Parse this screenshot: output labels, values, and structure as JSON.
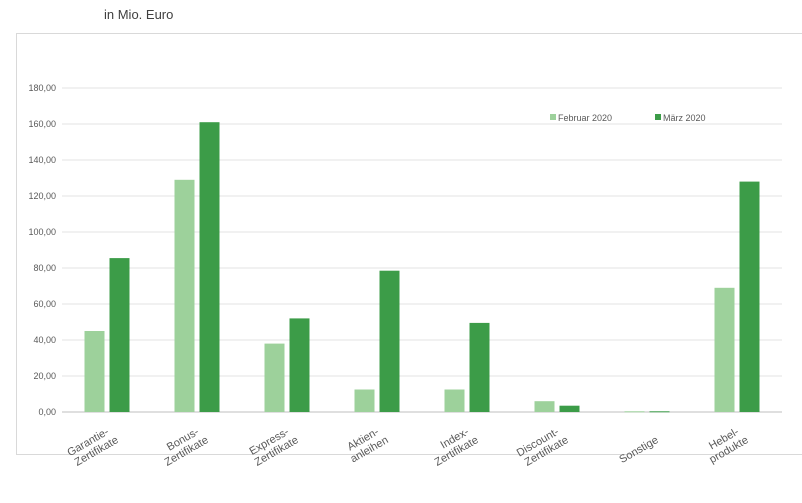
{
  "subtitle": "in Mio. Euro",
  "chart_data": {
    "type": "bar",
    "categories": [
      [
        "Garantie-",
        "Zertifikate"
      ],
      [
        "Bonus-",
        "Zertifikate"
      ],
      [
        "Express-",
        "Zertifikate"
      ],
      [
        "Aktien-",
        "anleihen"
      ],
      [
        "Index-",
        "Zertifikate"
      ],
      [
        "Discount-",
        "Zertifikate"
      ],
      [
        "Sonstige"
      ],
      [
        "Hebel-",
        "produkte"
      ]
    ],
    "series": [
      {
        "name": "Februar 2020",
        "color": "#9dd19b",
        "values": [
          45,
          129,
          38,
          12.5,
          12.5,
          6,
          0.4,
          69
        ]
      },
      {
        "name": "März 2020",
        "color": "#3c9c48",
        "values": [
          85.5,
          161,
          52,
          78.5,
          49.5,
          3.5,
          0.4,
          128
        ]
      }
    ],
    "ylim": [
      0,
      180
    ],
    "yticks": [
      "0,00",
      "20,00",
      "40,00",
      "60,00",
      "80,00",
      "100,00",
      "120,00",
      "140,00",
      "160,00",
      "180,00"
    ],
    "grid": true,
    "legend": "top-right",
    "xlabel": "",
    "ylabel": ""
  }
}
